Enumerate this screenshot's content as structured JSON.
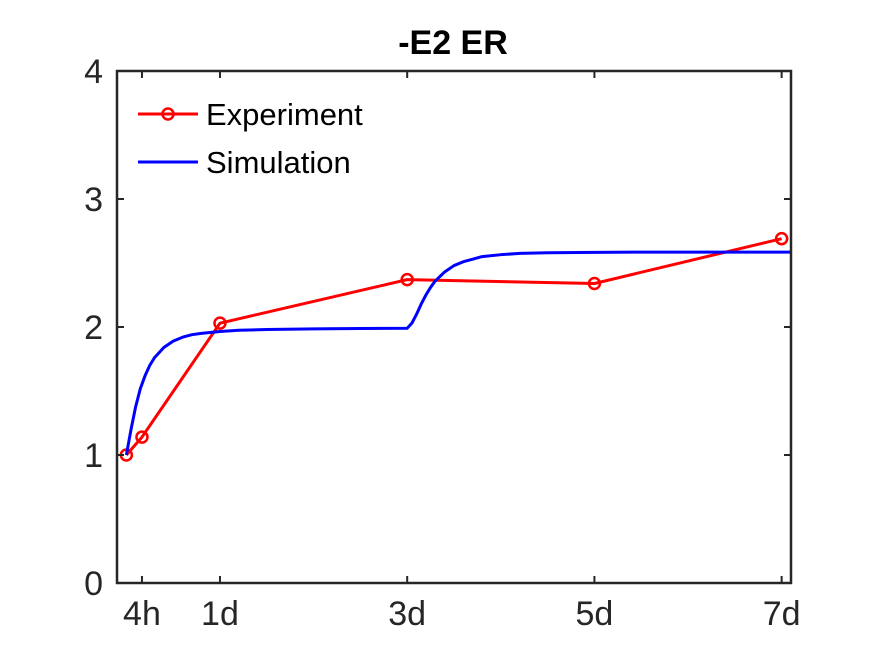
{
  "chart_data": {
    "type": "line",
    "title": "-E2 ER",
    "xlabel": "",
    "ylabel": "",
    "xlim": [
      -0.1,
      7.1
    ],
    "ylim": [
      0,
      4
    ],
    "grid": false,
    "legend_position": "top-left",
    "x_ticks": [
      {
        "value": 0.1667,
        "label": "4h"
      },
      {
        "value": 1,
        "label": "1d"
      },
      {
        "value": 3,
        "label": "3d"
      },
      {
        "value": 5,
        "label": "5d"
      },
      {
        "value": 7,
        "label": "7d"
      }
    ],
    "y_ticks": [
      {
        "value": 0,
        "label": "0"
      },
      {
        "value": 1,
        "label": "1"
      },
      {
        "value": 2,
        "label": "2"
      },
      {
        "value": 3,
        "label": "3"
      },
      {
        "value": 4,
        "label": "4"
      }
    ],
    "series": [
      {
        "name": "Experiment",
        "color": "#ff0000",
        "marker": "circle",
        "x": [
          0,
          0.1667,
          1,
          3,
          5,
          7
        ],
        "y": [
          1.0,
          1.14,
          2.03,
          2.37,
          2.34,
          2.69
        ]
      },
      {
        "name": "Simulation",
        "color": "#0000ff",
        "marker": "none",
        "x": [
          0,
          0.05,
          0.1,
          0.15,
          0.2,
          0.25,
          0.3,
          0.4,
          0.5,
          0.6,
          0.7,
          0.8,
          1.0,
          1.2,
          1.5,
          2.0,
          2.5,
          3.0,
          3.05,
          3.1,
          3.15,
          3.2,
          3.25,
          3.3,
          3.4,
          3.5,
          3.6,
          3.7,
          3.8,
          4.0,
          4.2,
          4.5,
          5.0,
          5.5,
          6.0,
          6.5,
          7.0,
          7.1
        ],
        "y": [
          1.0,
          1.2,
          1.38,
          1.52,
          1.62,
          1.7,
          1.76,
          1.84,
          1.89,
          1.92,
          1.94,
          1.95,
          1.965,
          1.975,
          1.98,
          1.985,
          1.988,
          1.99,
          2.03,
          2.1,
          2.18,
          2.25,
          2.31,
          2.36,
          2.43,
          2.48,
          2.51,
          2.53,
          2.55,
          2.565,
          2.575,
          2.58,
          2.583,
          2.585,
          2.585,
          2.585,
          2.585,
          2.585
        ]
      }
    ]
  }
}
